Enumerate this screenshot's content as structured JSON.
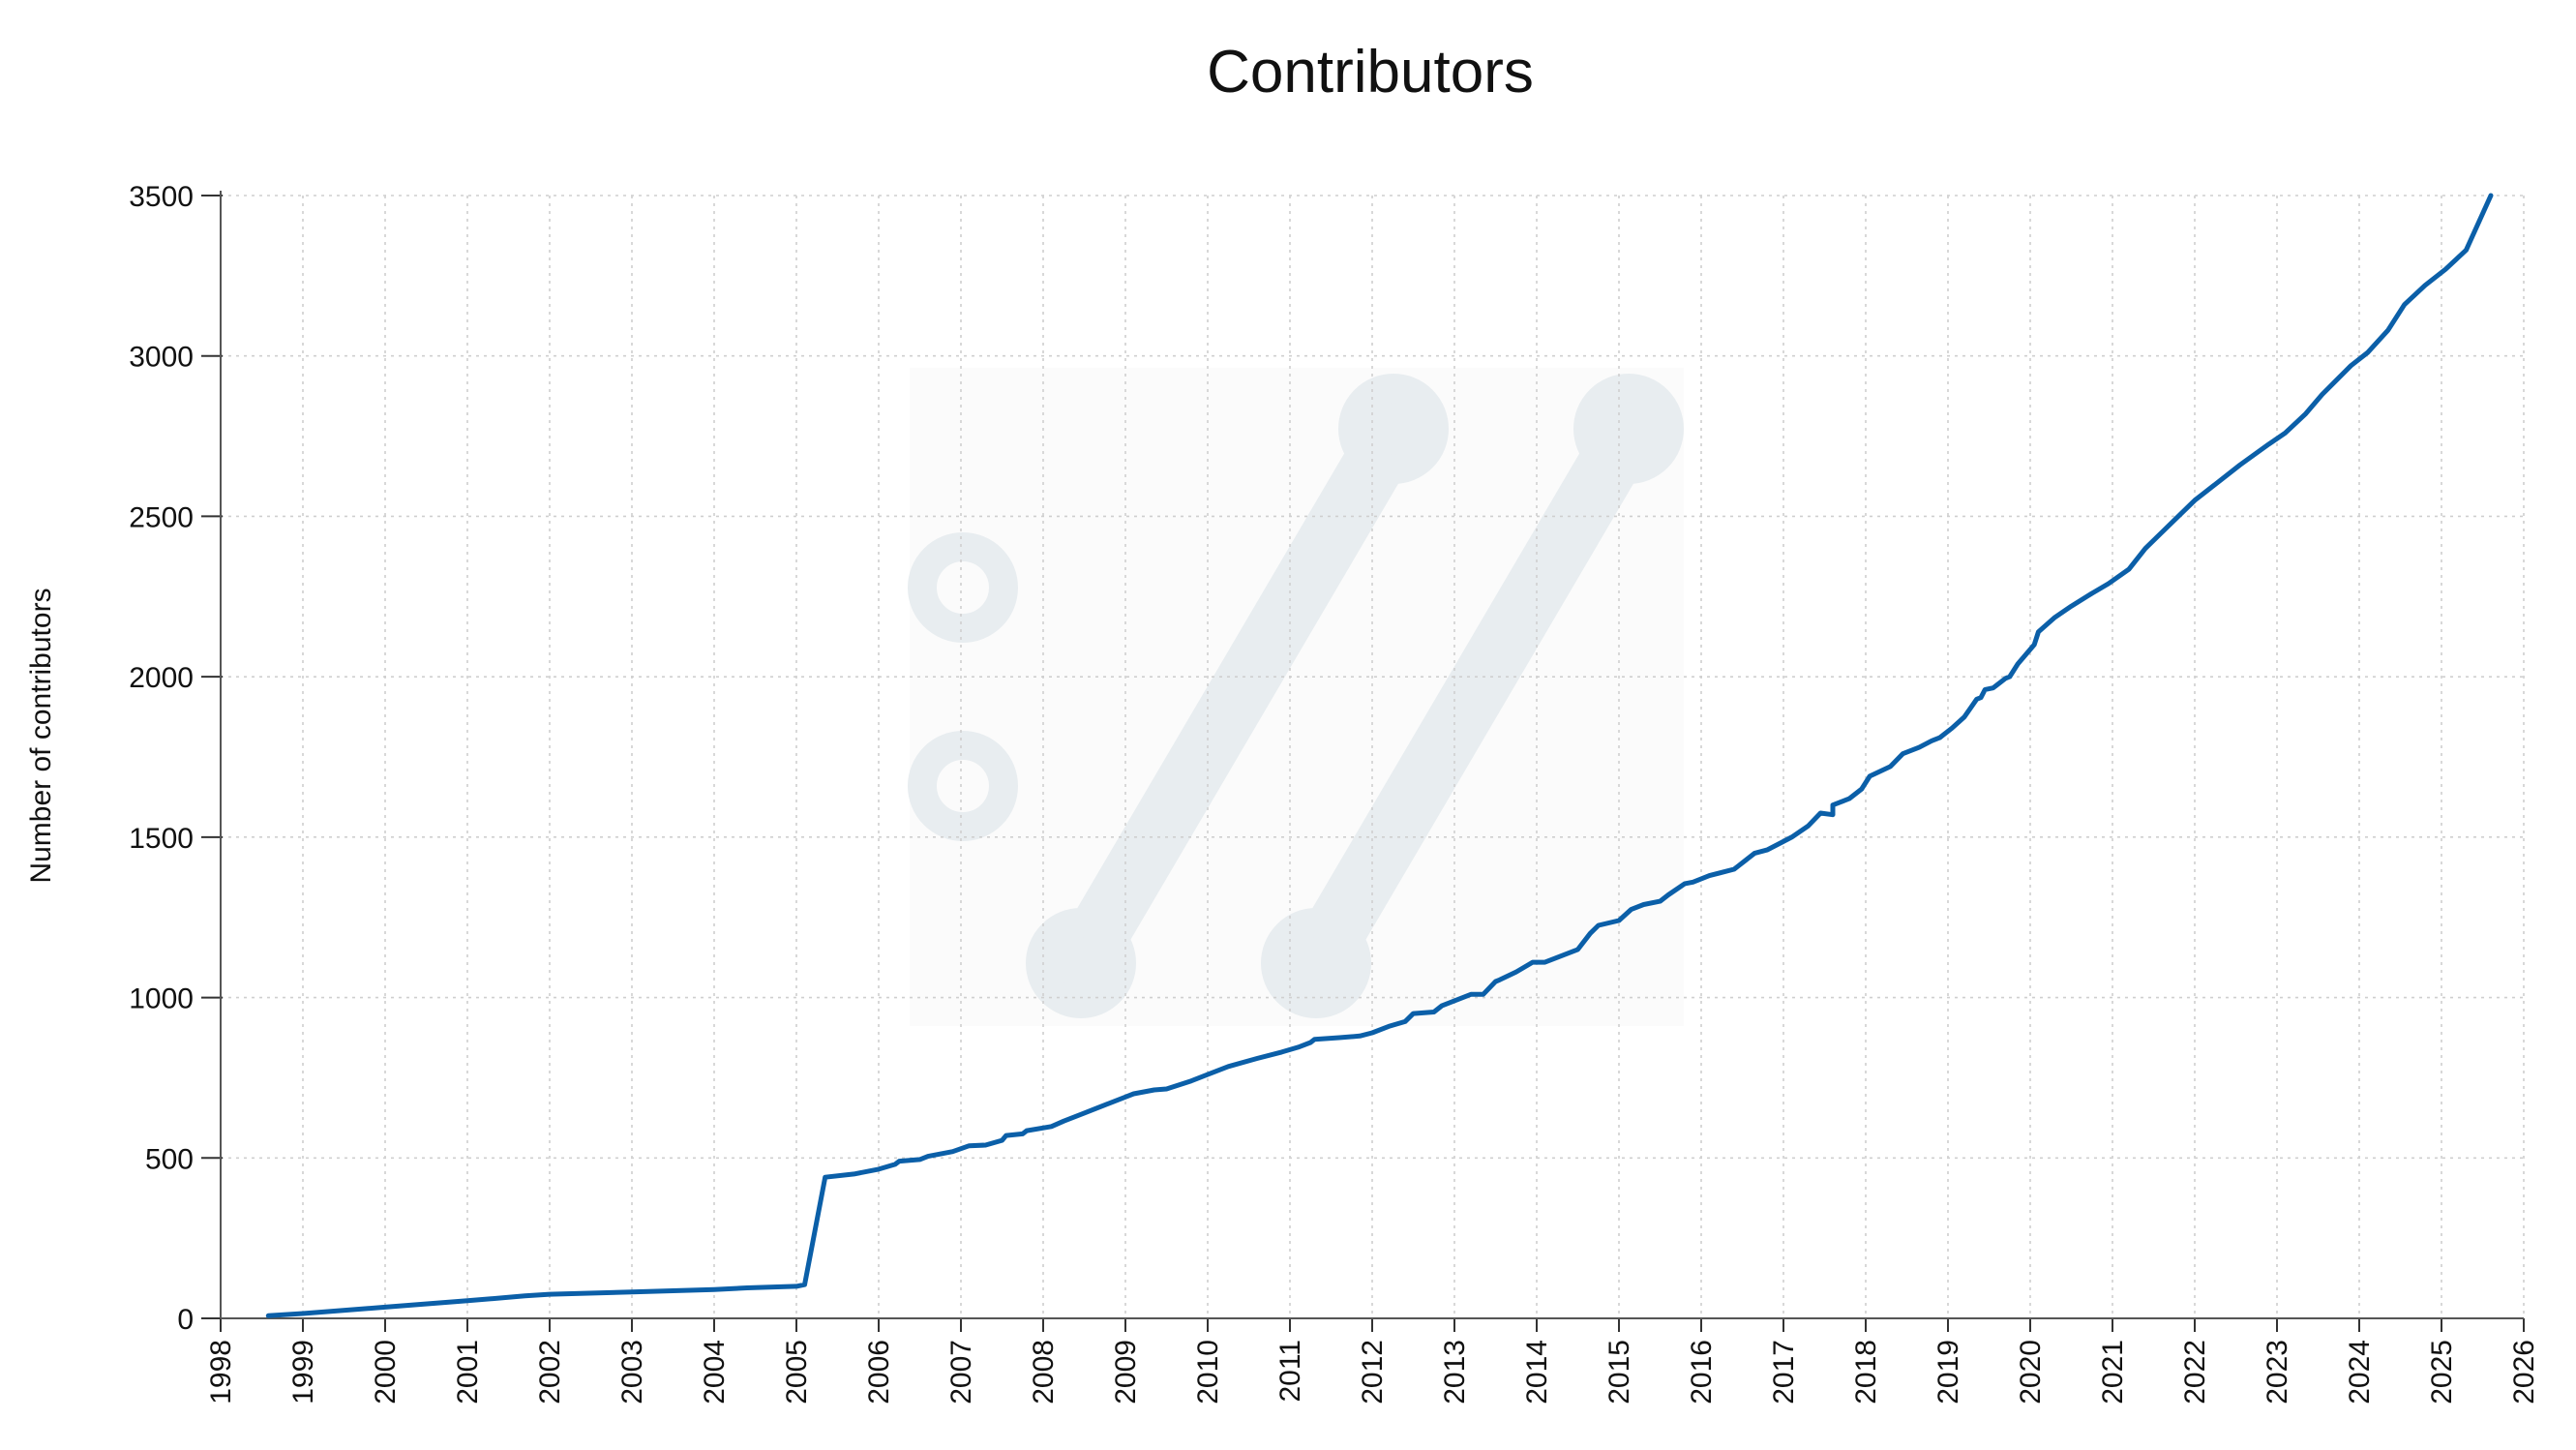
{
  "chart_data": {
    "type": "line",
    "title": "Contributors",
    "xlabel": "",
    "ylabel": "Number of contributors",
    "xlim": [
      1998,
      2026
    ],
    "ylim": [
      0,
      3500
    ],
    "x_ticks": [
      "1998",
      "1999",
      "2000",
      "2001",
      "2002",
      "2003",
      "2004",
      "2005",
      "2006",
      "2007",
      "2008",
      "2009",
      "2010",
      "2011",
      "2012",
      "2013",
      "2014",
      "2015",
      "2016",
      "2017",
      "2018",
      "2019",
      "2020",
      "2021",
      "2022",
      "2023",
      "2024",
      "2025",
      "2026"
    ],
    "y_ticks": [
      "0",
      "500",
      "1000",
      "1500",
      "2000",
      "2500",
      "3000",
      "3500"
    ],
    "grid": true,
    "legend": "none",
    "series": [
      {
        "color": "#0b5fa8",
        "x": [
          1998.58,
          1999.0,
          2000.0,
          2001.0,
          2001.7,
          2002.0,
          2003.0,
          2004.0,
          2004.4,
          2005.0,
          2005.1,
          2005.35,
          2005.7,
          2006.0,
          2006.2,
          2006.25,
          2006.5,
          2006.6,
          2006.9,
          2007.1,
          2007.3,
          2007.5,
          2007.55,
          2007.75,
          2007.8,
          2008.1,
          2008.25,
          2008.5,
          2008.8,
          2009.0,
          2009.1,
          2009.35,
          2009.5,
          2009.8,
          2010.0,
          2010.25,
          2010.6,
          2010.9,
          2011.1,
          2011.25,
          2011.3,
          2011.6,
          2011.85,
          2012.0,
          2012.2,
          2012.4,
          2012.5,
          2012.75,
          2012.85,
          2013.2,
          2013.35,
          2013.5,
          2013.55,
          2013.75,
          2013.95,
          2014.1,
          2014.5,
          2014.65,
          2014.75,
          2015.0,
          2015.15,
          2015.3,
          2015.5,
          2015.6,
          2015.8,
          2015.9,
          2016.1,
          2016.4,
          2016.45,
          2016.55,
          2016.65,
          2016.8,
          2016.95,
          2017.1,
          2017.3,
          2017.45,
          2017.6,
          2017.6,
          2017.8,
          2017.95,
          2018.05,
          2018.3,
          2018.45,
          2018.65,
          2018.8,
          2018.9,
          2019.05,
          2019.2,
          2019.35,
          2019.4,
          2019.45,
          2019.55,
          2019.6,
          2019.7,
          2019.75,
          2019.85,
          2020.05,
          2020.1,
          2020.3,
          2020.5,
          2020.75,
          2020.95,
          2021.2,
          2021.4,
          2021.6,
          2021.8,
          2022.0,
          2022.25,
          2022.55,
          2022.9,
          2023.1,
          2023.35,
          2023.55,
          2023.9,
          2024.1,
          2024.35,
          2024.55,
          2024.8,
          2025.05,
          2025.3,
          2025.6
        ],
        "y": [
          8,
          15,
          35,
          55,
          70,
          75,
          82,
          90,
          95,
          100,
          105,
          440,
          450,
          465,
          480,
          490,
          495,
          505,
          520,
          538,
          540,
          555,
          570,
          575,
          585,
          598,
          615,
          640,
          670,
          690,
          700,
          712,
          715,
          740,
          760,
          785,
          810,
          830,
          845,
          860,
          870,
          875,
          880,
          890,
          910,
          925,
          950,
          955,
          975,
          1010,
          1010,
          1050,
          1055,
          1080,
          1110,
          1110,
          1150,
          1200,
          1225,
          1240,
          1275,
          1290,
          1300,
          1320,
          1355,
          1360,
          1380,
          1400,
          1410,
          1430,
          1450,
          1460,
          1480,
          1500,
          1535,
          1575,
          1570,
          1600,
          1620,
          1650,
          1690,
          1720,
          1760,
          1780,
          1800,
          1810,
          1840,
          1875,
          1930,
          1935,
          1960,
          1965,
          1975,
          1995,
          2000,
          2040,
          2100,
          2140,
          2185,
          2220,
          2260,
          2290,
          2335,
          2400,
          2450,
          2500,
          2550,
          2600,
          2660,
          2725,
          2760,
          2820,
          2880,
          2970,
          3010,
          3080,
          3160,
          3220,
          3270,
          3330,
          3500
        ]
      }
    ]
  }
}
